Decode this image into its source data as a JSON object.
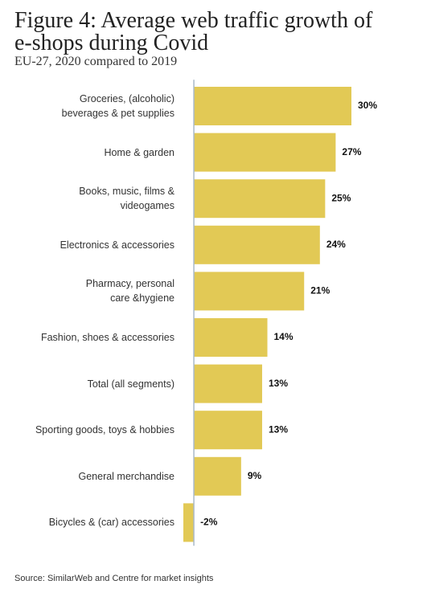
{
  "chart_data": {
    "type": "bar",
    "orientation": "horizontal",
    "title": "Figure 4: Average web traffic growth of\ne-shops during Covid",
    "subtitle": "EU-27, 2020 compared to 2019",
    "source": "Source: SimilarWeb and Centre for market insights",
    "categories": [
      "Groceries, (alcoholic)\nbeverages & pet supplies",
      "Home & garden",
      "Books, music, films &\nvideogames",
      "Electronics & accessories",
      "Pharmacy, personal\ncare &hygiene",
      "Fashion, shoes & accessories",
      "Total (all segments)",
      "Sporting goods, toys & hobbies",
      "General merchandise",
      "Bicycles & (car) accessories"
    ],
    "values": [
      30,
      27,
      25,
      24,
      21,
      14,
      13,
      13,
      9,
      -2
    ],
    "value_labels": [
      "30%",
      "27%",
      "25%",
      "24%",
      "21%",
      "14%",
      "13%",
      "13%",
      "9%",
      "-2%"
    ],
    "color": "#e2c955",
    "xlim": [
      -2,
      30
    ]
  }
}
